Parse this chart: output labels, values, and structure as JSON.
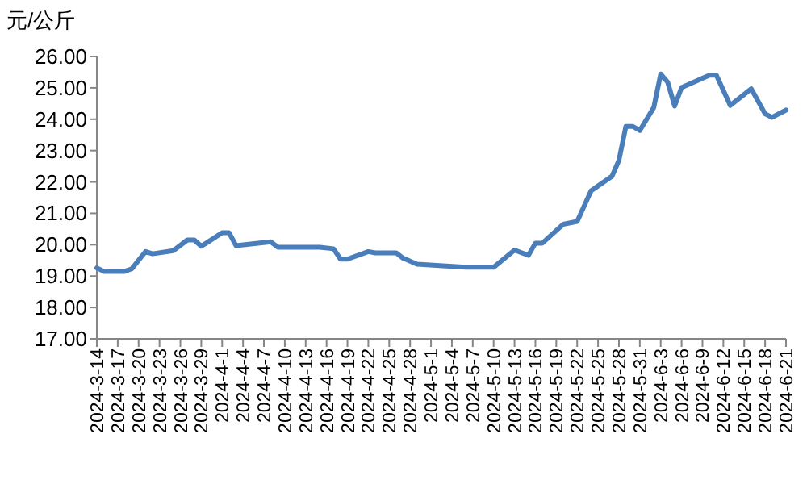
{
  "chart_data": {
    "type": "line",
    "ylabel": "元/公斤",
    "ylim": [
      17,
      26
    ],
    "yticks": [
      {
        "value": 17,
        "label": "17.00"
      },
      {
        "value": 18,
        "label": "18.00"
      },
      {
        "value": 19,
        "label": "19.00"
      },
      {
        "value": 20,
        "label": "20.00"
      },
      {
        "value": 21,
        "label": "21.00"
      },
      {
        "value": 22,
        "label": "22.00"
      },
      {
        "value": 23,
        "label": "23.00"
      },
      {
        "value": 24,
        "label": "24.00"
      },
      {
        "value": 25,
        "label": "25.00"
      },
      {
        "value": 26,
        "label": "26.00"
      }
    ],
    "xlim": [
      "2024-03-14",
      "2024-06-21"
    ],
    "xticks": [
      {
        "value": "2024-03-14",
        "label": "2024-3-14"
      },
      {
        "value": "2024-03-17",
        "label": "2024-3-17"
      },
      {
        "value": "2024-03-20",
        "label": "2024-3-20"
      },
      {
        "value": "2024-03-23",
        "label": "2024-3-23"
      },
      {
        "value": "2024-03-26",
        "label": "2024-3-26"
      },
      {
        "value": "2024-03-29",
        "label": "2024-3-29"
      },
      {
        "value": "2024-04-01",
        "label": "2024-4-1"
      },
      {
        "value": "2024-04-04",
        "label": "2024-4-4"
      },
      {
        "value": "2024-04-07",
        "label": "2024-4-7"
      },
      {
        "value": "2024-04-10",
        "label": "2024-4-10"
      },
      {
        "value": "2024-04-13",
        "label": "2024-4-13"
      },
      {
        "value": "2024-04-16",
        "label": "2024-4-16"
      },
      {
        "value": "2024-04-19",
        "label": "2024-4-19"
      },
      {
        "value": "2024-04-22",
        "label": "2024-4-22"
      },
      {
        "value": "2024-04-25",
        "label": "2024-4-25"
      },
      {
        "value": "2024-04-28",
        "label": "2024-4-28"
      },
      {
        "value": "2024-05-01",
        "label": "2024-5-1"
      },
      {
        "value": "2024-05-04",
        "label": "2024-5-4"
      },
      {
        "value": "2024-05-07",
        "label": "2024-5-7"
      },
      {
        "value": "2024-05-10",
        "label": "2024-5-10"
      },
      {
        "value": "2024-05-13",
        "label": "2024-5-13"
      },
      {
        "value": "2024-05-16",
        "label": "2024-5-16"
      },
      {
        "value": "2024-05-19",
        "label": "2024-5-19"
      },
      {
        "value": "2024-05-22",
        "label": "2024-5-22"
      },
      {
        "value": "2024-05-25",
        "label": "2024-5-25"
      },
      {
        "value": "2024-05-28",
        "label": "2024-5-28"
      },
      {
        "value": "2024-05-31",
        "label": "2024-5-31"
      },
      {
        "value": "2024-06-03",
        "label": "2024-6-3"
      },
      {
        "value": "2024-06-06",
        "label": "2024-6-6"
      },
      {
        "value": "2024-06-09",
        "label": "2024-6-9"
      },
      {
        "value": "2024-06-12",
        "label": "2024-6-12"
      },
      {
        "value": "2024-06-15",
        "label": "2024-6-15"
      },
      {
        "value": "2024-06-18",
        "label": "2024-6-18"
      },
      {
        "value": "2024-06-21",
        "label": "2024-6-21"
      }
    ],
    "x": [
      "2024-03-14",
      "2024-03-15",
      "2024-03-18",
      "2024-03-19",
      "2024-03-21",
      "2024-03-22",
      "2024-03-25",
      "2024-03-27",
      "2024-03-28",
      "2024-03-29",
      "2024-04-01",
      "2024-04-02",
      "2024-04-03",
      "2024-04-08",
      "2024-04-09",
      "2024-04-15",
      "2024-04-17",
      "2024-04-18",
      "2024-04-19",
      "2024-04-22",
      "2024-04-23",
      "2024-04-26",
      "2024-04-27",
      "2024-04-29",
      "2024-05-06",
      "2024-05-10",
      "2024-05-13",
      "2024-05-15",
      "2024-05-16",
      "2024-05-17",
      "2024-05-20",
      "2024-05-22",
      "2024-05-24",
      "2024-05-27",
      "2024-05-28",
      "2024-05-29",
      "2024-05-30",
      "2024-05-31",
      "2024-06-02",
      "2024-06-03",
      "2024-06-04",
      "2024-06-05",
      "2024-06-06",
      "2024-06-10",
      "2024-06-11",
      "2024-06-13",
      "2024-06-16",
      "2024-06-18",
      "2024-06-19",
      "2024-06-21"
    ],
    "series": [
      {
        "color": "#4a7ebb",
        "values": [
          19.26,
          19.15,
          19.15,
          19.23,
          19.78,
          19.71,
          19.81,
          20.15,
          20.15,
          19.95,
          20.38,
          20.38,
          19.97,
          20.09,
          19.92,
          19.92,
          19.87,
          19.54,
          19.54,
          19.78,
          19.74,
          19.74,
          19.57,
          19.38,
          19.28,
          19.28,
          19.83,
          19.66,
          20.05,
          20.05,
          20.65,
          20.74,
          21.72,
          22.18,
          22.69,
          23.77,
          23.77,
          23.64,
          24.37,
          25.44,
          25.18,
          24.42,
          25.01,
          25.4,
          25.4,
          24.44,
          24.97,
          24.17,
          24.06,
          24.29
        ]
      }
    ],
    "marker": "none",
    "line_style": "solid",
    "grid": false
  }
}
